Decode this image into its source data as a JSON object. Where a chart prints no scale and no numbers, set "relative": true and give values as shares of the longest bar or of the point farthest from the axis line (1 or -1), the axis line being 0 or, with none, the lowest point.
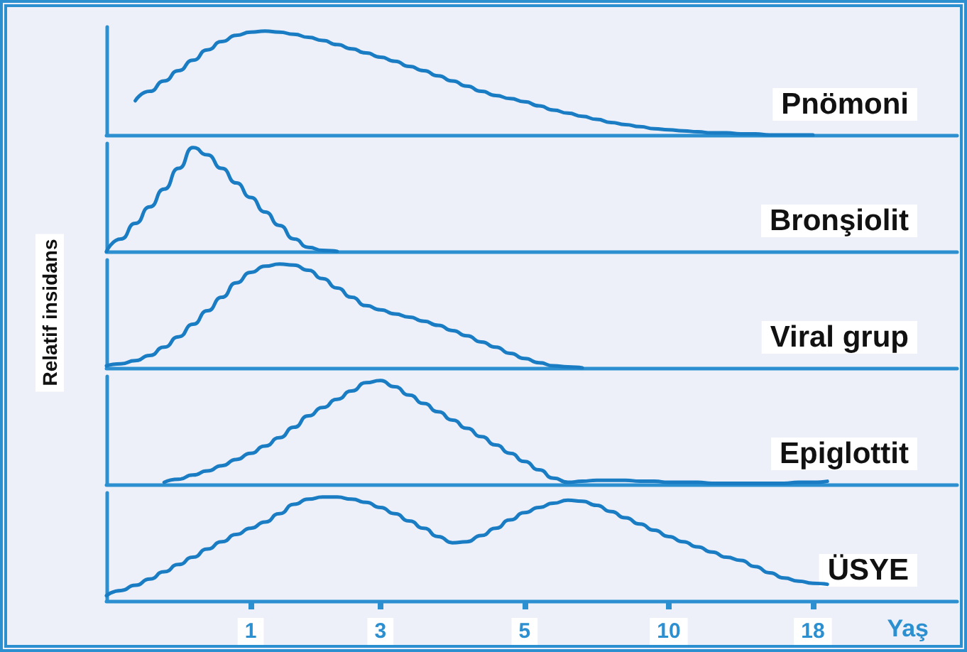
{
  "chart_data": [
    {
      "type": "line",
      "relative": true,
      "tick_labels": false,
      "marker": "none",
      "categories": [
        null,
        null,
        null,
        null,
        null,
        null,
        null,
        null,
        null,
        null,
        "1",
        null,
        null,
        null,
        null,
        null,
        null,
        null,
        null,
        "3",
        null,
        null,
        null,
        null,
        null,
        null,
        null,
        null,
        null,
        "5",
        null,
        null,
        null,
        null,
        null,
        null,
        null,
        null,
        null,
        "10",
        null,
        null,
        null,
        null,
        null,
        null,
        null,
        null,
        null,
        "18",
        null,
        null,
        null,
        null,
        null,
        null,
        null,
        null,
        null,
        null
      ],
      "series": [
        {
          "name": "Pnömoni",
          "color": "#1a7dc4",
          "values": [
            null,
            null,
            0.33,
            0.42,
            0.52,
            0.62,
            0.72,
            0.82,
            0.9,
            0.96,
            0.99,
            1.0,
            0.99,
            0.97,
            0.94,
            0.91,
            0.87,
            0.83,
            0.79,
            0.75,
            0.71,
            0.66,
            0.62,
            0.57,
            0.52,
            0.47,
            0.42,
            0.38,
            0.35,
            0.32,
            0.28,
            0.24,
            0.21,
            0.18,
            0.15,
            0.12,
            0.1,
            0.08,
            0.06,
            0.05,
            0.04,
            0.03,
            0.02,
            0.02,
            0.01,
            0.01,
            0,
            0,
            0,
            0,
            null,
            null,
            null,
            null,
            null,
            null,
            null,
            null,
            null,
            null
          ]
        }
      ]
    },
    {
      "type": "line",
      "relative": true,
      "tick_labels": false,
      "marker": "none",
      "categories": [
        null,
        null,
        null,
        null,
        null,
        null,
        null,
        null,
        null,
        null,
        "1",
        null,
        null,
        null,
        null,
        null,
        null,
        null,
        null,
        "3",
        null,
        null,
        null,
        null,
        null,
        null,
        null,
        null,
        null,
        "5",
        null,
        null,
        null,
        null,
        null,
        null,
        null,
        null,
        null,
        "10",
        null,
        null,
        null,
        null,
        null,
        null,
        null,
        null,
        null,
        "18",
        null,
        null,
        null,
        null,
        null,
        null,
        null,
        null,
        null,
        null
      ],
      "series": [
        {
          "name": "Bronşiolit",
          "color": "#1a7dc4",
          "values": [
            0,
            0.12,
            0.27,
            0.43,
            0.6,
            0.8,
            1.0,
            0.93,
            0.8,
            0.66,
            0.52,
            0.38,
            0.25,
            0.12,
            0.04,
            0.01,
            0,
            null,
            null,
            null,
            null,
            null,
            null,
            null,
            null,
            null,
            null,
            null,
            null,
            null,
            null,
            null,
            null,
            null,
            null,
            null,
            null,
            null,
            null,
            null,
            null,
            null,
            null,
            null,
            null,
            null,
            null,
            null,
            null,
            null,
            null,
            null,
            null,
            null,
            null,
            null,
            null,
            null,
            null,
            null
          ]
        }
      ]
    },
    {
      "type": "line",
      "relative": true,
      "tick_labels": false,
      "marker": "none",
      "ylabel": "Relatif insidans",
      "categories": [
        null,
        null,
        null,
        null,
        null,
        null,
        null,
        null,
        null,
        null,
        "1",
        null,
        null,
        null,
        null,
        null,
        null,
        null,
        null,
        "3",
        null,
        null,
        null,
        null,
        null,
        null,
        null,
        null,
        null,
        "5",
        null,
        null,
        null,
        null,
        null,
        null,
        null,
        null,
        null,
        "10",
        null,
        null,
        null,
        null,
        null,
        null,
        null,
        null,
        null,
        "18",
        null,
        null,
        null,
        null,
        null,
        null,
        null,
        null,
        null,
        null
      ],
      "series": [
        {
          "name": "Viral grup",
          "color": "#1a7dc4",
          "values": [
            0.02,
            0.04,
            0.07,
            0.12,
            0.2,
            0.3,
            0.42,
            0.55,
            0.68,
            0.82,
            0.92,
            0.98,
            1.0,
            0.99,
            0.94,
            0.86,
            0.77,
            0.68,
            0.6,
            0.56,
            0.52,
            0.49,
            0.45,
            0.41,
            0.36,
            0.31,
            0.25,
            0.2,
            0.14,
            0.09,
            0.05,
            0.02,
            0.01,
            0,
            null,
            null,
            null,
            null,
            null,
            null,
            null,
            null,
            null,
            null,
            null,
            null,
            null,
            null,
            null,
            null,
            null,
            null,
            null,
            null,
            null,
            null,
            null,
            null,
            null,
            null
          ]
        }
      ]
    },
    {
      "type": "line",
      "relative": true,
      "tick_labels": false,
      "marker": "none",
      "categories": [
        null,
        null,
        null,
        null,
        null,
        null,
        null,
        null,
        null,
        null,
        "1",
        null,
        null,
        null,
        null,
        null,
        null,
        null,
        null,
        "3",
        null,
        null,
        null,
        null,
        null,
        null,
        null,
        null,
        null,
        "5",
        null,
        null,
        null,
        null,
        null,
        null,
        null,
        null,
        null,
        "10",
        null,
        null,
        null,
        null,
        null,
        null,
        null,
        null,
        null,
        "18",
        null,
        null,
        null,
        null,
        null,
        null,
        null,
        null,
        null,
        null
      ],
      "series": [
        {
          "name": "Epiglottit",
          "color": "#1a7dc4",
          "values": [
            null,
            null,
            null,
            null,
            0.02,
            0.05,
            0.09,
            0.13,
            0.18,
            0.24,
            0.3,
            0.37,
            0.45,
            0.55,
            0.66,
            0.74,
            0.82,
            0.9,
            0.98,
            1.0,
            0.94,
            0.86,
            0.78,
            0.7,
            0.62,
            0.54,
            0.46,
            0.38,
            0.3,
            0.22,
            0.14,
            0.06,
            0.02,
            0.03,
            0.04,
            0.04,
            0.04,
            0.03,
            0.03,
            0.02,
            0.02,
            0.02,
            0.01,
            0.01,
            0.01,
            0.01,
            0.01,
            0.01,
            0.02,
            0.02,
            0.03,
            null,
            null,
            null,
            null,
            null,
            null,
            null,
            null,
            null
          ]
        }
      ]
    },
    {
      "type": "line",
      "relative": true,
      "marker": "none",
      "xlabel": "Yaş",
      "categories": [
        null,
        null,
        null,
        null,
        null,
        null,
        null,
        null,
        null,
        null,
        "1",
        null,
        null,
        null,
        null,
        null,
        null,
        null,
        null,
        "3",
        null,
        null,
        null,
        null,
        null,
        null,
        null,
        null,
        null,
        "5",
        null,
        null,
        null,
        null,
        null,
        null,
        null,
        null,
        null,
        "10",
        null,
        null,
        null,
        null,
        null,
        null,
        null,
        null,
        null,
        "18",
        null,
        null,
        null,
        null,
        null,
        null,
        null,
        null,
        null,
        null
      ],
      "series": [
        {
          "name": "ÜSYE",
          "color": "#1a7dc4",
          "values": [
            0.05,
            0.1,
            0.15,
            0.21,
            0.28,
            0.35,
            0.42,
            0.5,
            0.57,
            0.64,
            0.7,
            0.76,
            0.84,
            0.93,
            0.98,
            1.0,
            1.0,
            0.98,
            0.95,
            0.9,
            0.84,
            0.77,
            0.7,
            0.62,
            0.56,
            0.57,
            0.63,
            0.7,
            0.78,
            0.85,
            0.9,
            0.94,
            0.97,
            0.96,
            0.92,
            0.86,
            0.8,
            0.74,
            0.68,
            0.62,
            0.57,
            0.52,
            0.47,
            0.42,
            0.39,
            0.33,
            0.27,
            0.22,
            0.19,
            0.17,
            0.16,
            null,
            null,
            null,
            null,
            null,
            null,
            null,
            null,
            null
          ]
        }
      ]
    }
  ]
}
